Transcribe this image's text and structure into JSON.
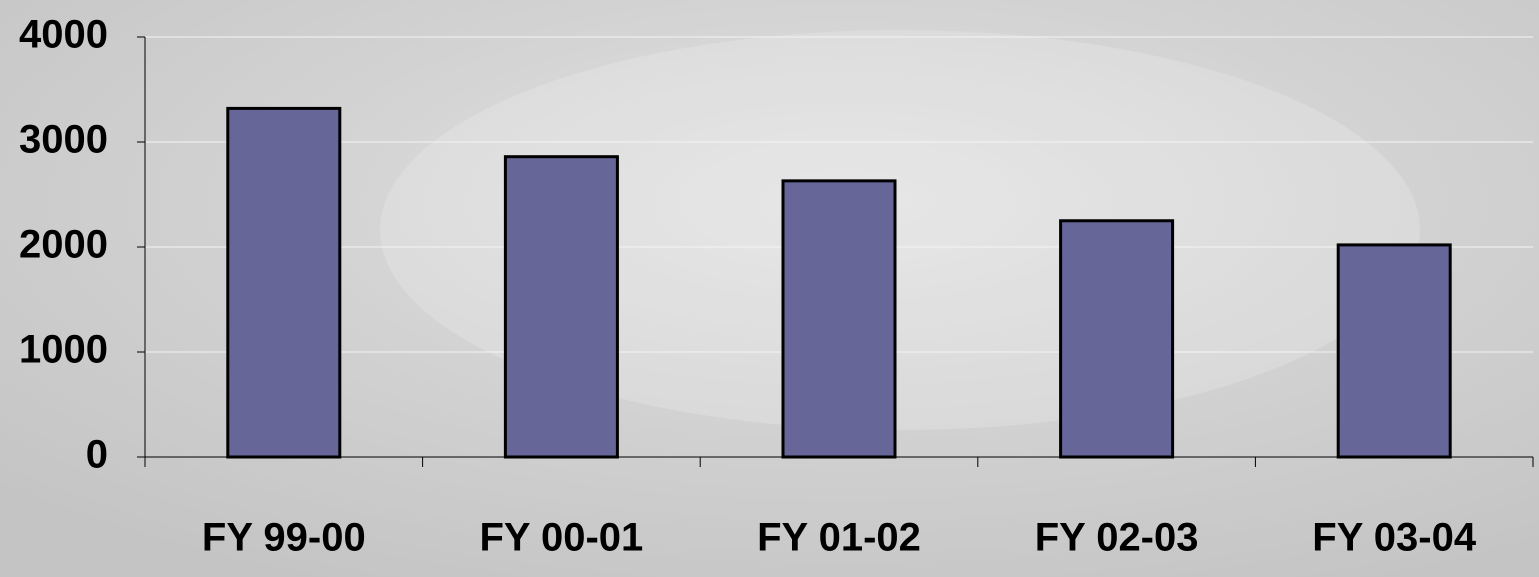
{
  "chart_data": {
    "type": "bar",
    "categories": [
      "FY 99-00",
      "FY 00-01",
      "FY 01-02",
      "FY 02-03",
      "FY 03-04"
    ],
    "values": [
      3320,
      2860,
      2630,
      2250,
      2020
    ],
    "color": "#666699",
    "ylim": [
      0,
      4000
    ],
    "yticks": [
      0,
      1000,
      2000,
      3000,
      4000
    ],
    "grid": true
  }
}
